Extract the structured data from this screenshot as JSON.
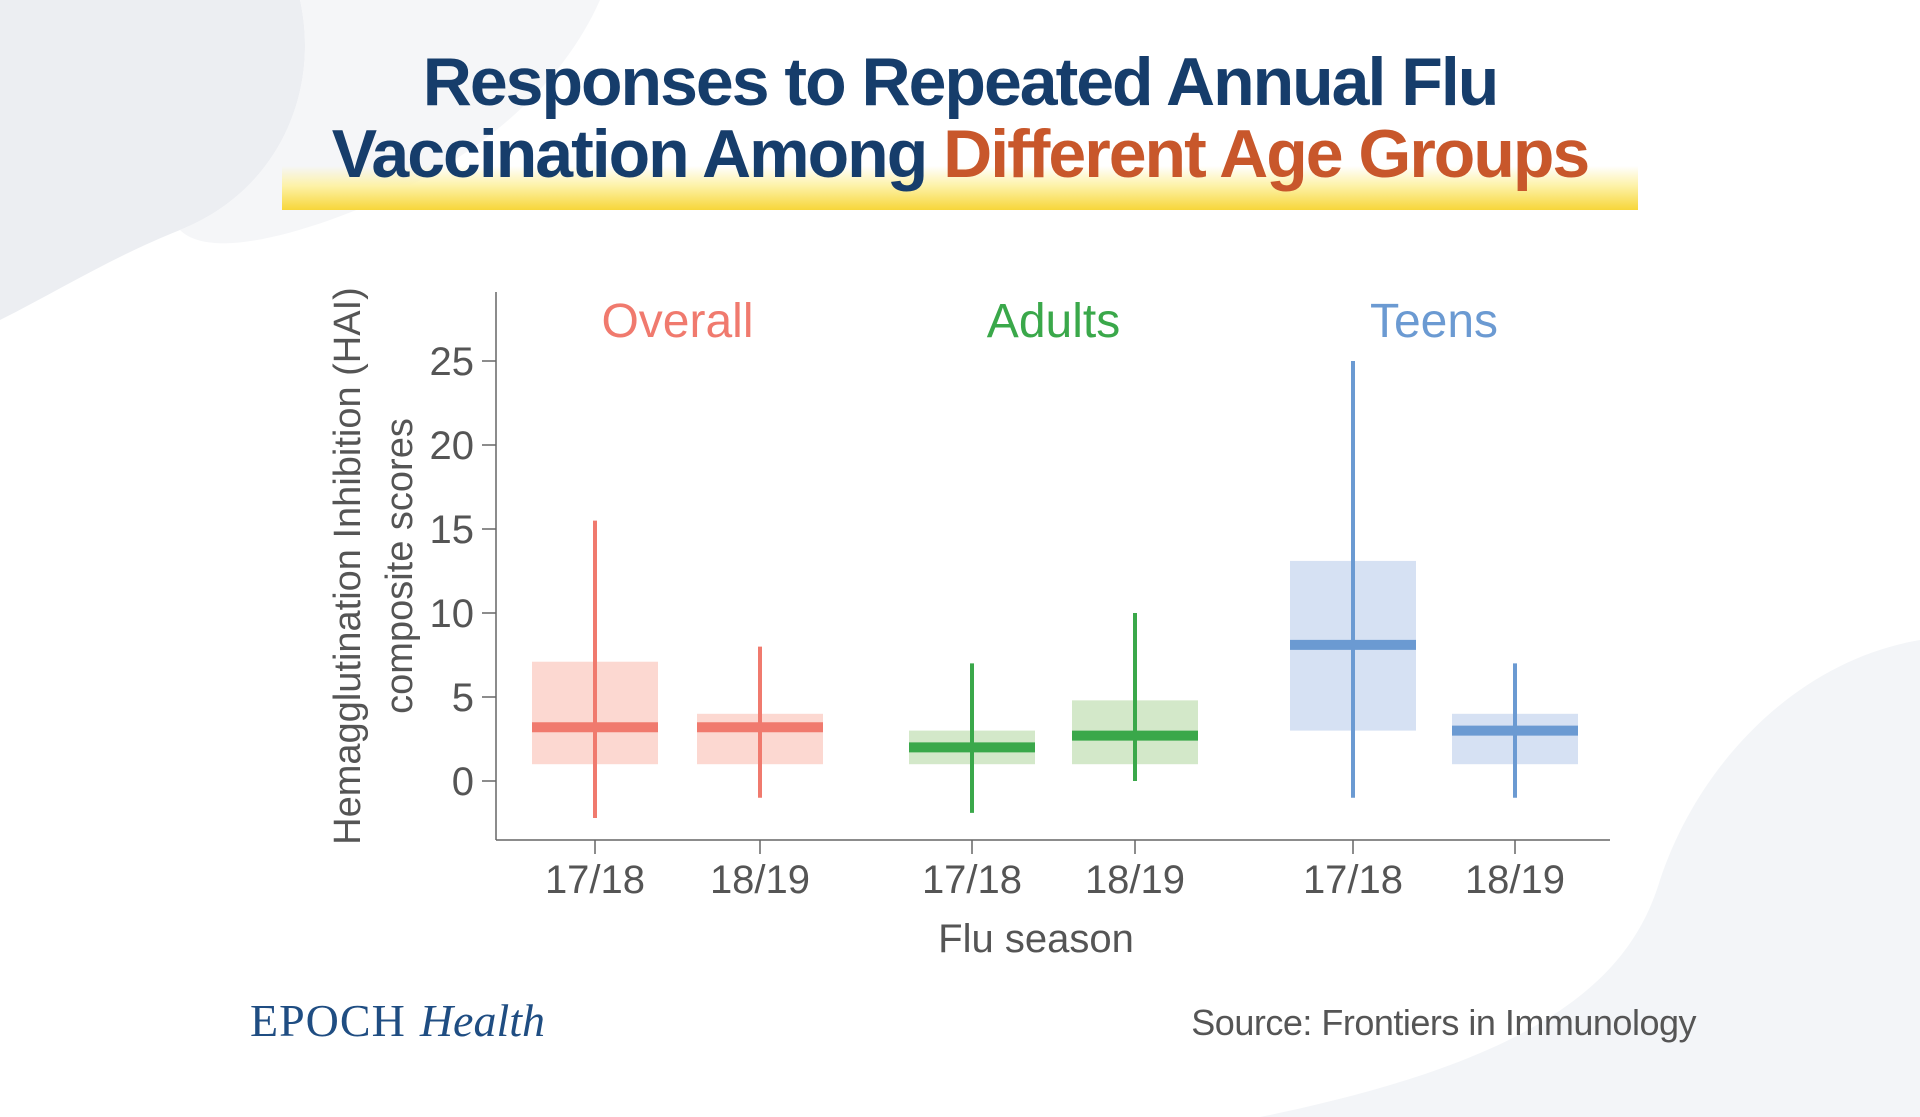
{
  "title": {
    "line1": "Responses to Repeated Annual Flu",
    "line2_main": "Vaccination Among ",
    "line2_accent": "Different Age Groups"
  },
  "brand": {
    "part1": "EPOCH",
    "part2": "Health"
  },
  "source": "Source: Frontiers in Immunology",
  "colors": {
    "title": "#163d6b",
    "accent": "#c8572b",
    "overall": "#f07a6e",
    "overall_fill": "#fcd8d1",
    "adults": "#3aa84a",
    "adults_fill": "#d3e8c9",
    "teens": "#6b9ad2",
    "teens_fill": "#d6e1f3"
  },
  "chart_data": {
    "type": "box",
    "xlabel": "Flu season",
    "ylabel": [
      "Hemagglutination Inhibition (HAI)",
      "composite scores"
    ],
    "ylim": [
      -3.5,
      29
    ],
    "yticks": [
      0,
      5,
      10,
      15,
      20,
      25
    ],
    "groups": [
      {
        "name": "Overall",
        "color_key": "overall",
        "boxes": [
          {
            "season": "17/18",
            "whisker_low": -2.2,
            "q1": 1.0,
            "median": 3.2,
            "q3": 7.1,
            "whisker_high": 15.5
          },
          {
            "season": "18/19",
            "whisker_low": -1.0,
            "q1": 1.0,
            "median": 3.2,
            "q3": 4.0,
            "whisker_high": 8.0
          }
        ]
      },
      {
        "name": "Adults",
        "color_key": "adults",
        "boxes": [
          {
            "season": "17/18",
            "whisker_low": -1.9,
            "q1": 1.0,
            "median": 2.0,
            "q3": 3.0,
            "whisker_high": 7.0
          },
          {
            "season": "18/19",
            "whisker_low": 0.0,
            "q1": 1.0,
            "median": 2.7,
            "q3": 4.8,
            "whisker_high": 10.0
          }
        ]
      },
      {
        "name": "Teens",
        "color_key": "teens",
        "boxes": [
          {
            "season": "17/18",
            "whisker_low": -1.0,
            "q1": 3.0,
            "median": 8.1,
            "q3": 13.1,
            "whisker_high": 25.0
          },
          {
            "season": "18/19",
            "whisker_low": -1.0,
            "q1": 1.0,
            "median": 3.0,
            "q3": 4.0,
            "whisker_high": 7.0
          }
        ]
      }
    ]
  }
}
